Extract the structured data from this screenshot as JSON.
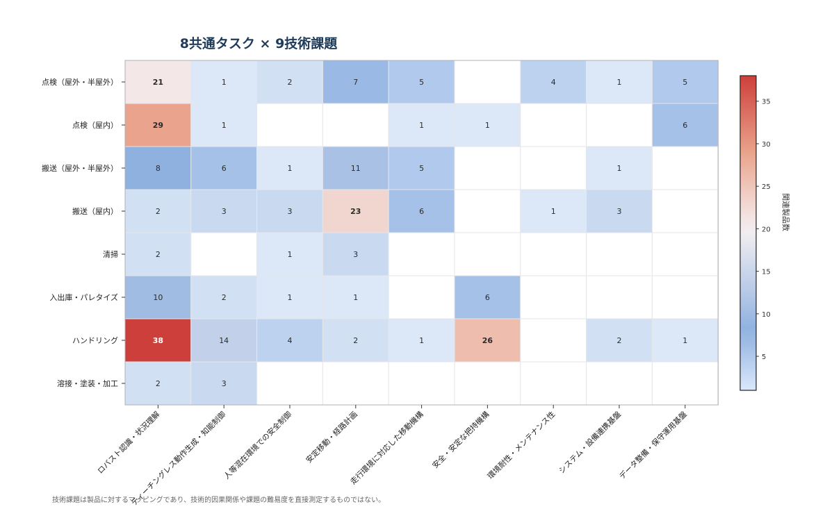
{
  "title": "8共通タスク × 9技術課題",
  "footnote": "技術課題は製品に対するマッピングであり、技術的因果関係や課題の難易度を直接測定するものではない。",
  "colors": {
    "low": "#dbe8fb",
    "mid": "#f5f0f2",
    "high": "#cd3f3a",
    "strong_low": "#8fb1e0",
    "grid": "#e3e3e8",
    "frame": "#b0b0b8"
  },
  "chart_data": {
    "type": "heatmap",
    "title": "8共通タスク × 9技術課題",
    "rows": [
      "点検（屋外・半屋外）",
      "点検（屋内）",
      "搬送（屋外・半屋外）",
      "搬送（屋内）",
      "清掃",
      "入出庫・パレタイズ",
      "ハンドリング",
      "溶接・塗装・加工"
    ],
    "columns": [
      "ロバスト認識・状況理解",
      "ティーチングレス動作生成・知能制御",
      "人等混在環境での安全制御",
      "安定移動・経路計画",
      "走行環境に対応した移動機構",
      "安全・安定な把持機構",
      "環境耐性・メンテナンス性",
      "システム・設備連携基盤",
      "データ整備・保守運用基盤"
    ],
    "values": [
      [
        21,
        1,
        2,
        7,
        5,
        null,
        4,
        1,
        5
      ],
      [
        29,
        1,
        null,
        null,
        1,
        1,
        null,
        null,
        6
      ],
      [
        8,
        6,
        1,
        11,
        5,
        null,
        null,
        1,
        null
      ],
      [
        2,
        3,
        3,
        23,
        6,
        null,
        1,
        3,
        null
      ],
      [
        2,
        null,
        1,
        3,
        null,
        null,
        null,
        null,
        null
      ],
      [
        10,
        2,
        1,
        1,
        null,
        6,
        null,
        null,
        null
      ],
      [
        38,
        14,
        4,
        2,
        1,
        26,
        null,
        2,
        1
      ],
      [
        2,
        3,
        null,
        null,
        null,
        null,
        null,
        null,
        null
      ]
    ],
    "colorbar": {
      "label": "関連製品数",
      "ticks": [
        5,
        10,
        15,
        20,
        25,
        30,
        35
      ],
      "range": [
        1,
        38
      ]
    }
  }
}
